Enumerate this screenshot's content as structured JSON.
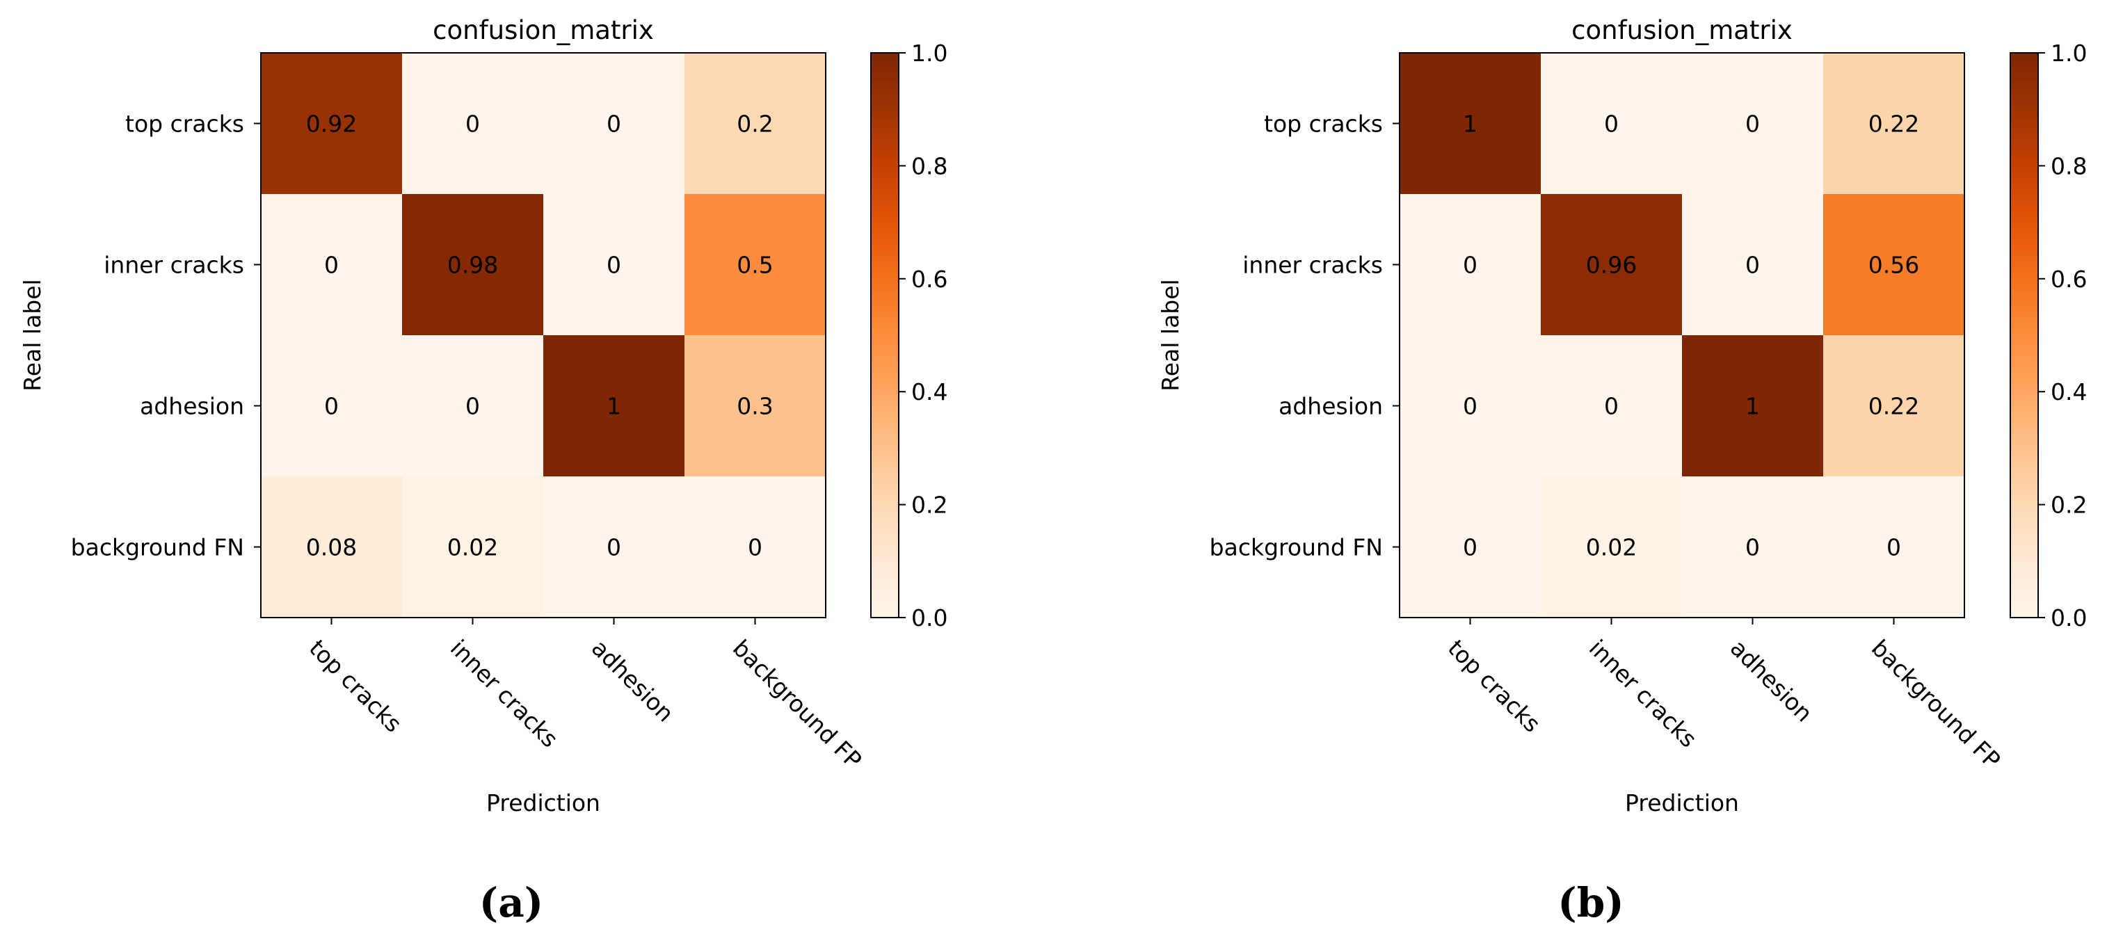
{
  "chart_data": [
    {
      "type": "heatmap",
      "title": "confusion_matrix",
      "xlabel": "Prediction",
      "ylabel": "Real label",
      "x_categories": [
        "top cracks",
        "inner cracks",
        "adhesion",
        "background FP"
      ],
      "y_categories": [
        "top cracks",
        "inner cracks",
        "adhesion",
        "background FN"
      ],
      "values": [
        [
          0.92,
          0.0,
          0.0,
          0.2
        ],
        [
          0.0,
          0.98,
          0.0,
          0.5
        ],
        [
          0.0,
          0.0,
          1.0,
          0.3
        ],
        [
          0.08,
          0.02,
          0.0,
          0.0
        ]
      ],
      "colorbar": {
        "min": 0.0,
        "max": 1.0,
        "ticks": [
          "0.0",
          "0.2",
          "0.4",
          "0.6",
          "0.8",
          "1.0"
        ]
      },
      "colormap": "Oranges",
      "caption": "(a)"
    },
    {
      "type": "heatmap",
      "title": "confusion_matrix",
      "xlabel": "Prediction",
      "ylabel": "Real label",
      "x_categories": [
        "top cracks",
        "inner cracks",
        "adhesion",
        "background FP"
      ],
      "y_categories": [
        "top cracks",
        "inner cracks",
        "adhesion",
        "background FN"
      ],
      "values": [
        [
          1.0,
          0.0,
          0.0,
          0.22
        ],
        [
          0.0,
          0.96,
          0.0,
          0.56
        ],
        [
          0.0,
          0.0,
          1.0,
          0.22
        ],
        [
          0.0,
          0.02,
          0.0,
          0.0
        ]
      ],
      "colorbar": {
        "min": 0.0,
        "max": 1.0,
        "ticks": [
          "0.0",
          "0.2",
          "0.4",
          "0.6",
          "0.8",
          "1.0"
        ]
      },
      "colormap": "Oranges",
      "caption": "(b)"
    }
  ]
}
